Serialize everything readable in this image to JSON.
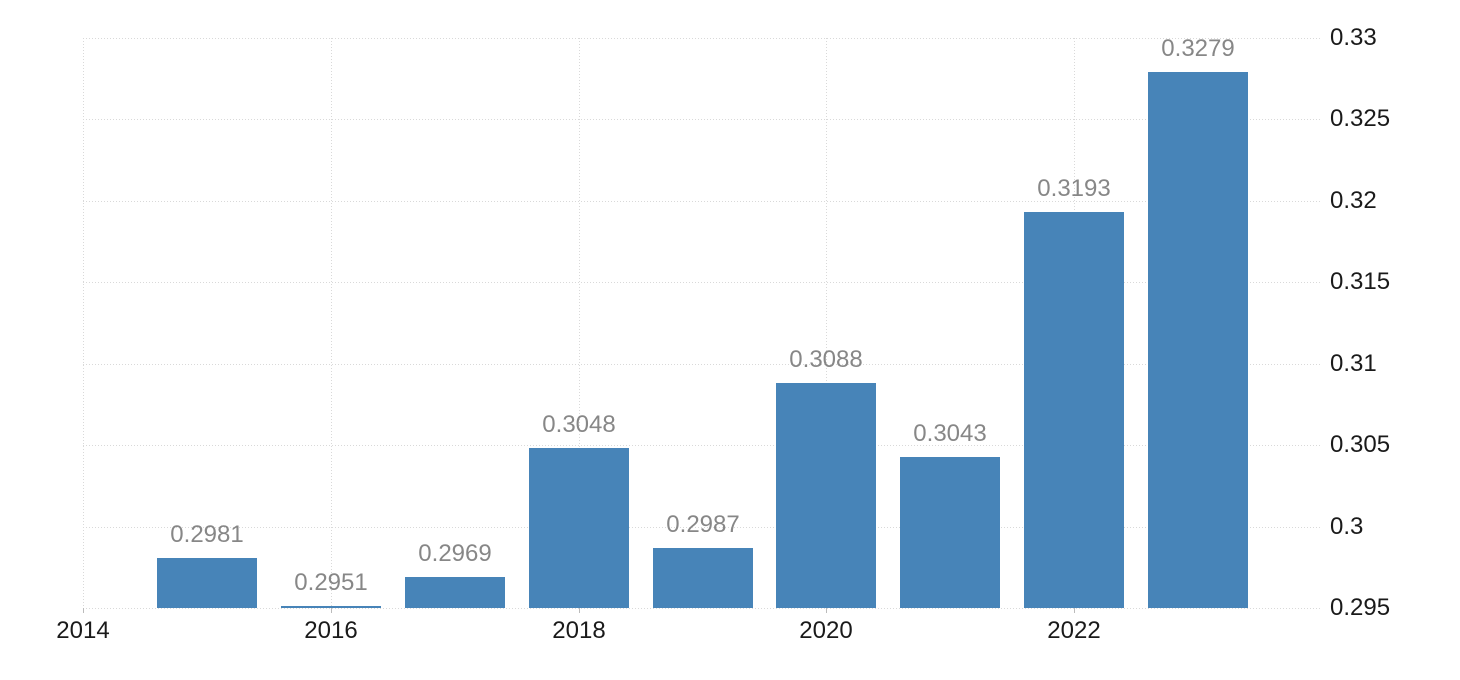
{
  "chart_data": {
    "type": "bar",
    "title": "",
    "xlabel": "",
    "ylabel": "",
    "categories": [
      "2015",
      "2016",
      "2017",
      "2018",
      "2019",
      "2020",
      "2021",
      "2022",
      "2023"
    ],
    "values": [
      0.2981,
      0.2951,
      0.2969,
      0.3048,
      0.2987,
      0.3088,
      0.3043,
      0.3193,
      0.3279
    ],
    "bar_value_labels": [
      "0.2981",
      "0.2951",
      "0.2969",
      "0.3048",
      "0.2987",
      "0.3088",
      "0.3043",
      "0.3193",
      "0.3279"
    ],
    "x_axis": {
      "range": [
        2014,
        2024
      ],
      "tick_years": [
        2014,
        2016,
        2018,
        2020,
        2022
      ],
      "tick_labels": [
        "2014",
        "2016",
        "2018",
        "2020",
        "2022"
      ]
    },
    "y_axis": {
      "position": "right",
      "range": [
        0.295,
        0.33
      ],
      "tick_values": [
        0.295,
        0.3,
        0.305,
        0.31,
        0.315,
        0.32,
        0.325,
        0.33
      ],
      "tick_labels": [
        "0.295",
        "0.3",
        "0.305",
        "0.31",
        "0.315",
        "0.32",
        "0.325",
        "0.33"
      ]
    },
    "grid": true,
    "legend": false,
    "colors": {
      "bar": "#4784b8",
      "grid": "#d9d9d9",
      "value_label": "#878787",
      "axis_label": "#1a1a1a",
      "tick_mark": "#bbbbbb",
      "background": "#ffffff"
    }
  }
}
